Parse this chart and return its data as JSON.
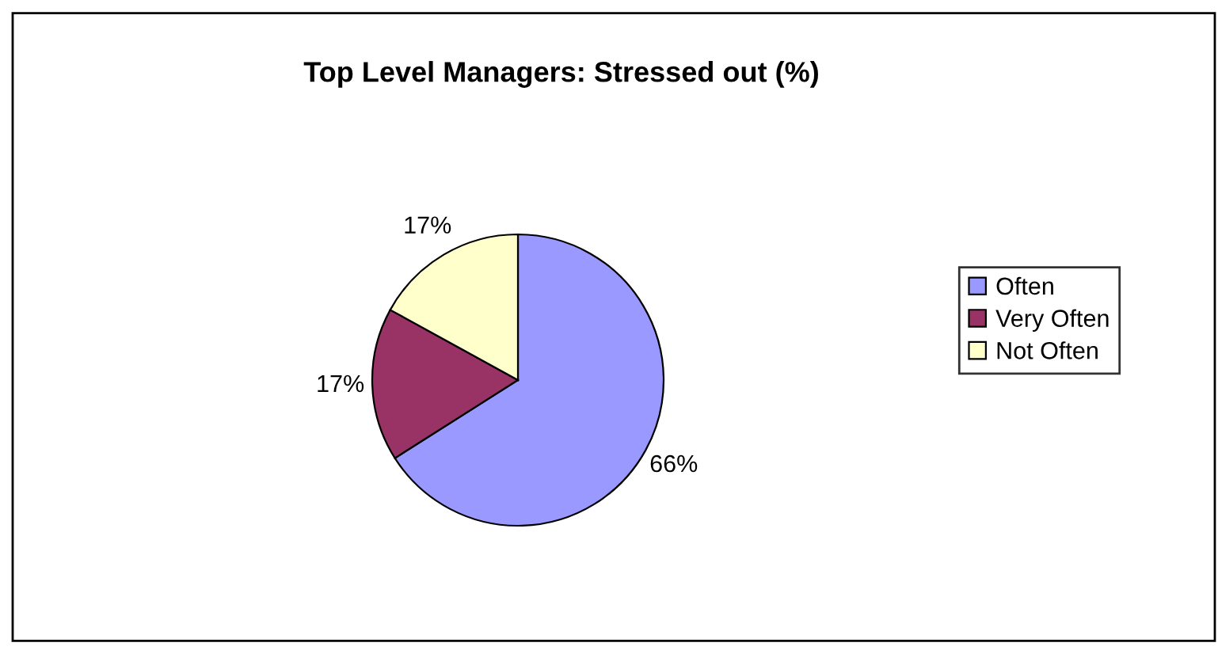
{
  "chart_data": {
    "type": "pie",
    "title": "Top Level Managers: Stressed out (%)",
    "categories": [
      "Often",
      "Very Often",
      "Not Often"
    ],
    "values": [
      66,
      17,
      17
    ],
    "colors": [
      "#9999ff",
      "#993366",
      "#ffffcc"
    ],
    "value_labels": [
      "66%",
      "17%",
      "17%"
    ],
    "legend": "right"
  }
}
